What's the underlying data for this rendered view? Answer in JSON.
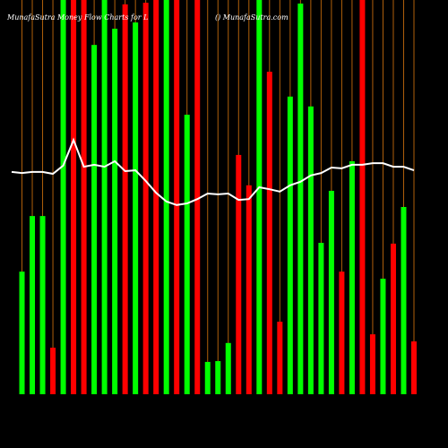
{
  "chart_data": {
    "type": "bar-line",
    "title": "MunafaSutra Money Flow Charts for L",
    "subtitle": "() MunafaSutra.com",
    "categories": [
      null,
      null,
      null,
      null,
      null,
      null,
      null,
      null,
      null,
      null,
      null,
      null,
      null,
      null,
      null,
      null,
      null,
      null,
      null,
      null,
      null,
      null,
      null,
      null,
      null,
      null,
      null,
      null,
      null,
      null,
      null,
      null,
      null,
      null,
      null,
      null,
      null,
      null,
      null,
      null
    ],
    "ylim": [
      0,
      100
    ],
    "bars": {
      "values": [
        null,
        31.1,
        45.2,
        45.2,
        11.8,
        100,
        100,
        100,
        88.6,
        100,
        92.7,
        98.9,
        94.3,
        99.3,
        100,
        100,
        100,
        70.9,
        100,
        8.2,
        8.4,
        13.0,
        60.7,
        53.0,
        100,
        81.8,
        18.4,
        75.5,
        99.1,
        73.0,
        38.4,
        51.6,
        31.1,
        59.1,
        100,
        15.2,
        29.3,
        38.2,
        47.5,
        13.4
      ],
      "colors": [
        null,
        "#00ff00",
        "#00ff00",
        "#00ff00",
        "#ff0000",
        "#00ff00",
        "#ff0000",
        "#ff0000",
        "#00ff00",
        "#00ff00",
        "#00ff00",
        "#ff0000",
        "#00ff00",
        "#ff0000",
        "#ff0000",
        "#00ff00",
        "#ff0000",
        "#00ff00",
        "#ff0000",
        "#00ff00",
        "#00ff00",
        "#00ff00",
        "#ff0000",
        "#ff0000",
        "#00ff00",
        "#ff0000",
        "#ff0000",
        "#00ff00",
        "#00ff00",
        "#00ff00",
        "#00ff00",
        "#00ff00",
        "#ff0000",
        "#00ff00",
        "#ff0000",
        "#ff0000",
        "#00ff00",
        "#ff0000",
        "#00ff00",
        "#ff0000"
      ]
    },
    "line": {
      "color": "#ffffff",
      "values": [
        56.4,
        56.1,
        56.4,
        56.4,
        55.9,
        58.0,
        64.5,
        57.7,
        58.2,
        57.7,
        59.1,
        56.6,
        56.8,
        54.1,
        51.1,
        48.9,
        48.0,
        48.4,
        49.5,
        50.9,
        50.7,
        50.9,
        49.3,
        49.5,
        52.5,
        52.0,
        51.4,
        53.0,
        53.9,
        55.5,
        56.1,
        57.5,
        57.3,
        58.2,
        58.2,
        58.6,
        58.6,
        57.7,
        57.7,
        56.8
      ]
    },
    "gridline_color": "#b0600a"
  }
}
